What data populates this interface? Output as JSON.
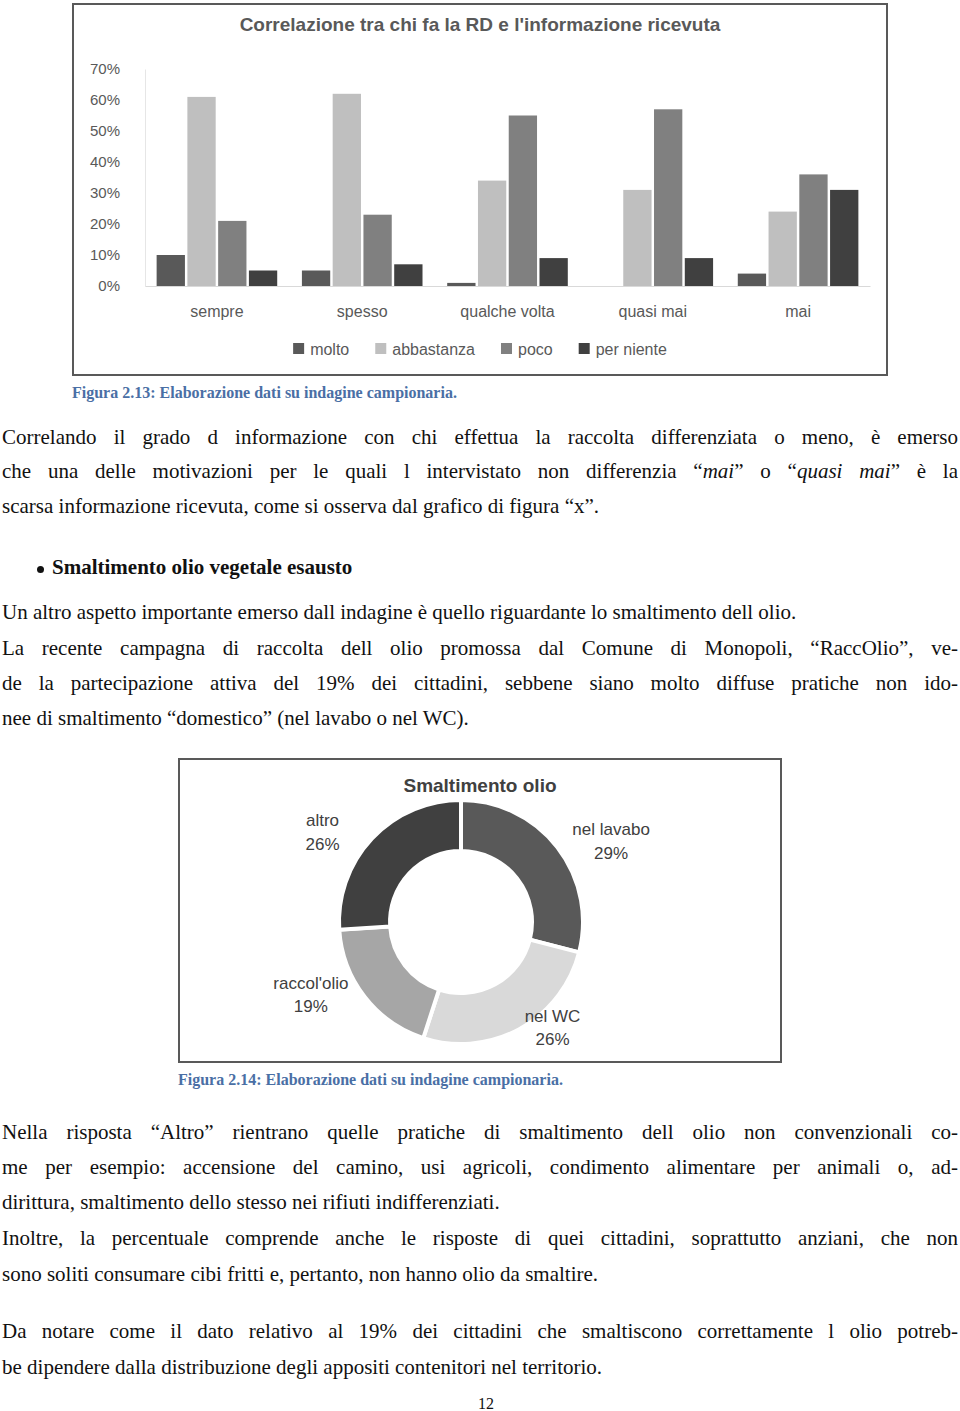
{
  "chart_data": [
    {
      "type": "bar",
      "title": "Correlazione tra chi fa la RD e l'informazione ricevuta",
      "categories": [
        "sempre",
        "spesso",
        "qualche volta",
        "quasi mai",
        "mai"
      ],
      "series": [
        {
          "name": "molto",
          "color": "#595959",
          "values": [
            10,
            5,
            1,
            0,
            4
          ]
        },
        {
          "name": "abbastanza",
          "color": "#bfbfbf",
          "values": [
            61,
            62,
            34,
            31,
            24
          ]
        },
        {
          "name": "poco",
          "color": "#808080",
          "values": [
            21,
            23,
            55,
            57,
            36
          ]
        },
        {
          "name": "per niente",
          "color": "#404040",
          "values": [
            5,
            7,
            9,
            9,
            31
          ]
        }
      ],
      "ylim": [
        0,
        70
      ],
      "yticks": [
        {
          "value": 0,
          "label": "0%"
        },
        {
          "value": 10,
          "label": "10%"
        },
        {
          "value": 20,
          "label": "20%"
        },
        {
          "value": 30,
          "label": "30%"
        },
        {
          "value": 40,
          "label": "40%"
        },
        {
          "value": 50,
          "label": "50%"
        },
        {
          "value": 60,
          "label": "60%"
        },
        {
          "value": 70,
          "label": "70%"
        }
      ],
      "grid": false,
      "legend": "bottom"
    },
    {
      "type": "donut",
      "title": "Smaltimento olio",
      "categories": [
        "nel lavabo",
        "nel WC",
        "raccol'olio",
        "altro"
      ],
      "values": [
        29,
        26,
        19,
        26
      ],
      "value_labels": [
        "29%",
        "26%",
        "19%",
        "26%"
      ],
      "colors": [
        "#595959",
        "#d9d9d9",
        "#a6a6a6",
        "#404040"
      ],
      "data_labels": true
    }
  ],
  "document": {
    "captions": [
      "Figura 2.13: Elaborazione dati su indagine campionaria.",
      "Figura 2.14: Elaborazione dati su indagine campionaria."
    ],
    "heading": "Smaltimento olio vegetale esausto",
    "paragraphs": [
      [
        "Correlando il grado d informazione con chi effettua la raccolta differenziata o meno, è emerso",
        [
          "che una delle motivazioni per le quali l intervistato non differenzia “",
          "mai",
          "” o “",
          "quasi mai",
          "” è la"
        ],
        "scarsa informazione ricevuta, come si osserva dal grafico di figura “x”."
      ],
      [
        "Un altro aspetto importante emerso dall indagine è quello riguardante lo smaltimento dell olio."
      ],
      [
        "La recente campagna di raccolta dell olio promossa dal Comune di Monopoli, “RaccOlio”, ve-",
        "de la partecipazione attiva del 19% dei cittadini, sebbene siano molto diffuse pratiche non ido-",
        "nee di smaltimento “domestico” (nel lavabo o nel WC)."
      ],
      [
        "Nella risposta “Altro” rientrano quelle pratiche di smaltimento dell olio non convenzionali co-",
        "me per esempio: accensione del camino, usi agricoli, condimento alimentare per animali o, ad-",
        "dirittura,  smaltimento dello stesso nei rifiuti indifferenziati."
      ],
      [
        "Inoltre, la percentuale comprende anche le risposte di quei cittadini, soprattutto anziani, che non",
        "sono soliti consumare cibi  fritti e, pertanto, non hanno olio da smaltire."
      ],
      [
        "Da notare come il dato relativo al 19% dei cittadini che smaltiscono correttamente l olio potreb-",
        "be dipendere dalla distribuzione degli appositi contenitori nel territorio."
      ]
    ],
    "page_number": "12"
  }
}
